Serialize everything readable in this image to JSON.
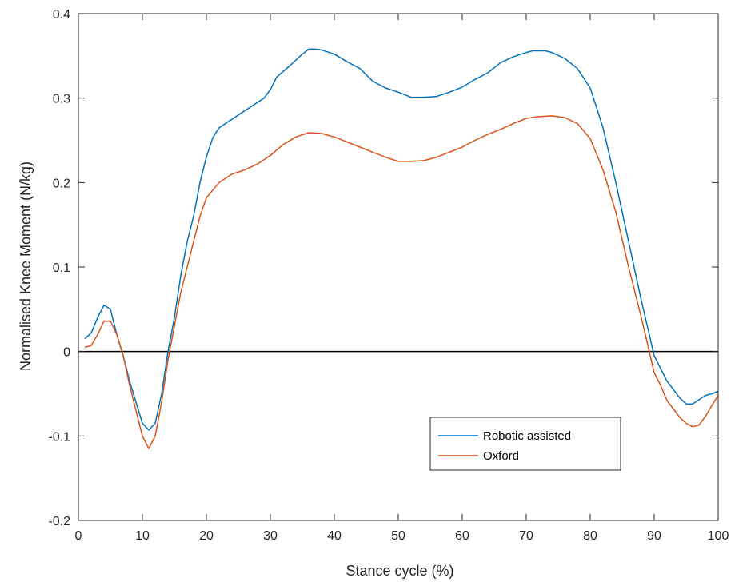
{
  "chart_data": {
    "type": "line",
    "title": "",
    "xlabel": "Stance cycle (%)",
    "ylabel": "Normalised Knee Moment (N/kg)",
    "xlim": [
      0,
      100
    ],
    "ylim": [
      -0.2,
      0.4
    ],
    "xticks": [
      0,
      10,
      20,
      30,
      40,
      50,
      60,
      70,
      80,
      90,
      100
    ],
    "yticks": [
      -0.2,
      -0.1,
      0,
      0.1,
      0.2,
      0.3,
      0.4
    ],
    "xtick_labels": [
      "0",
      "10",
      "20",
      "30",
      "40",
      "50",
      "60",
      "70",
      "80",
      "90",
      "100"
    ],
    "ytick_labels": [
      "-0.2",
      "-0.1",
      "0",
      "0.1",
      "0.2",
      "0.3",
      "0.4"
    ],
    "grid": false,
    "legend_position": "bottom-right",
    "reference_line_y": 0,
    "series": [
      {
        "name": "Robotic assisted",
        "color": "#0072BD",
        "x": [
          1,
          2,
          3,
          4,
          5,
          6,
          7,
          8,
          9,
          10,
          11,
          12,
          13,
          14,
          15,
          16,
          17,
          18,
          19,
          20,
          21,
          22,
          24,
          26,
          28,
          29,
          30,
          31,
          33,
          35,
          36,
          37,
          38,
          40,
          42,
          44,
          46,
          48,
          50,
          52,
          54,
          56,
          58,
          60,
          62,
          64,
          66,
          68,
          70,
          71,
          72,
          73,
          74,
          76,
          78,
          80,
          82,
          84,
          86,
          88,
          90,
          92,
          93,
          94,
          95,
          96,
          97,
          98,
          99,
          100
        ],
        "y": [
          0.015,
          0.022,
          0.04,
          0.055,
          0.05,
          0.02,
          -0.005,
          -0.035,
          -0.06,
          -0.085,
          -0.093,
          -0.085,
          -0.05,
          0.0,
          0.04,
          0.09,
          0.13,
          0.16,
          0.2,
          0.23,
          0.253,
          0.265,
          0.275,
          0.285,
          0.295,
          0.3,
          0.31,
          0.325,
          0.338,
          0.352,
          0.358,
          0.358,
          0.357,
          0.352,
          0.343,
          0.335,
          0.32,
          0.312,
          0.307,
          0.301,
          0.301,
          0.302,
          0.307,
          0.313,
          0.322,
          0.33,
          0.342,
          0.349,
          0.354,
          0.356,
          0.356,
          0.356,
          0.354,
          0.347,
          0.335,
          0.312,
          0.265,
          0.2,
          0.13,
          0.06,
          -0.005,
          -0.035,
          -0.045,
          -0.055,
          -0.062,
          -0.062,
          -0.057,
          -0.052,
          -0.05,
          -0.047
        ]
      },
      {
        "name": "Oxford",
        "color": "#D95319",
        "x": [
          1,
          2,
          3,
          4,
          5,
          6,
          7,
          8,
          9,
          10,
          11,
          12,
          13,
          14,
          15,
          16,
          17,
          18,
          19,
          20,
          22,
          24,
          26,
          28,
          30,
          32,
          34,
          36,
          38,
          40,
          42,
          44,
          46,
          48,
          50,
          52,
          54,
          56,
          58,
          60,
          62,
          64,
          66,
          68,
          70,
          72,
          74,
          76,
          78,
          80,
          82,
          84,
          86,
          88,
          90,
          91,
          92,
          93,
          94,
          95,
          96,
          97,
          98,
          99,
          100
        ],
        "y": [
          0.005,
          0.007,
          0.02,
          0.036,
          0.036,
          0.02,
          -0.005,
          -0.04,
          -0.07,
          -0.1,
          -0.115,
          -0.1,
          -0.06,
          -0.01,
          0.03,
          0.07,
          0.1,
          0.13,
          0.16,
          0.182,
          0.2,
          0.21,
          0.215,
          0.222,
          0.232,
          0.245,
          0.254,
          0.259,
          0.258,
          0.254,
          0.248,
          0.242,
          0.236,
          0.23,
          0.225,
          0.225,
          0.226,
          0.23,
          0.236,
          0.242,
          0.25,
          0.257,
          0.263,
          0.27,
          0.276,
          0.278,
          0.279,
          0.277,
          0.27,
          0.252,
          0.215,
          0.165,
          0.1,
          0.04,
          -0.025,
          -0.04,
          -0.058,
          -0.068,
          -0.078,
          -0.085,
          -0.089,
          -0.087,
          -0.077,
          -0.064,
          -0.052
        ]
      }
    ]
  }
}
